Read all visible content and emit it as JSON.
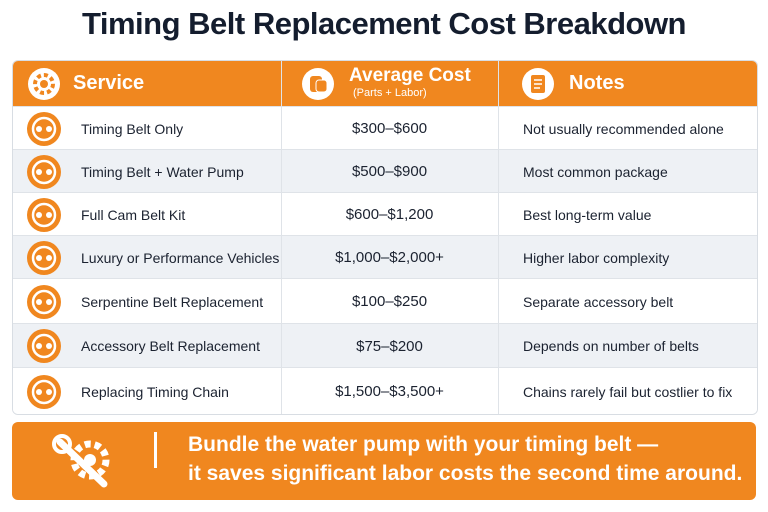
{
  "header": {
    "title": "Timing Belt Replacement Cost  Breakdown"
  },
  "table": {
    "columns": [
      {
        "label": "Service"
      },
      {
        "label": "Average Cost",
        "sublabel": "(Parts + Labor)"
      },
      {
        "label": "Notes"
      }
    ],
    "rows": [
      [
        "Timing Belt Only",
        "$300–$600",
        "Not usually recommended alone"
      ],
      [
        "Timing Belt + Water Pump",
        "$500–$900",
        "Most common package"
      ],
      [
        "Full Cam Belt Kit",
        "$600–$1,200",
        "Best long-term value"
      ],
      [
        "Luxury or Performance Vehicles",
        "$1,000–$2,000+",
        "Higher labor complexity"
      ],
      [
        "Serpentine Belt Replacement",
        "$100–$250",
        "Separate accessory belt"
      ],
      [
        "Accessory Belt Replacement",
        "$75–$200",
        "Depends on number of belts"
      ],
      [
        "Replacing Timing Chain",
        "$1,500–$3,500+",
        "Chains rarely fail but costlier to fix"
      ]
    ]
  },
  "tip": {
    "lines": [
      "Bundle  the water pump with your timing belt —",
      "it saves significant labor costs the second time around."
    ]
  }
}
